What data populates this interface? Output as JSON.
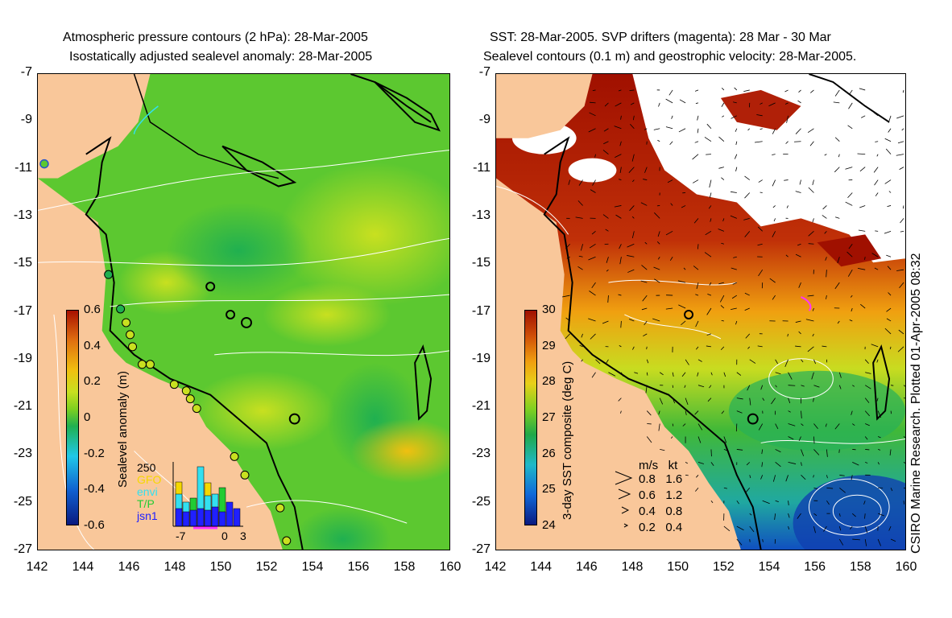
{
  "left_panel": {
    "title_line1": "Atmospheric pressure contours (2 hPa): 28-Mar-2005",
    "title_line2": "Isostatically adjusted sealevel anomaly: 28-Mar-2005",
    "colorbar": {
      "label": "Sealevel anomaly (m)",
      "ticks": [
        "0.6",
        "0.4",
        "0.2",
        "0",
        "-0.2",
        "-0.4",
        "-0.6"
      ],
      "range": [
        -0.6,
        0.6
      ]
    },
    "inset": {
      "ymax_label": "250",
      "legend": [
        {
          "name": "GFO",
          "color": "#f5d800"
        },
        {
          "name": "envi",
          "color": "#33e0f0"
        },
        {
          "name": "T/P",
          "color": "#22cc33"
        },
        {
          "name": "jsn1",
          "color": "#2020ff"
        }
      ],
      "x_ticks": [
        "-7",
        "0",
        "3"
      ]
    }
  },
  "right_panel": {
    "title_line1": "SST: 28-Mar-2005. SVP drifters (magenta): 28 Mar - 30 Mar",
    "title_line2": "Sealevel contours (0.1 m) and geostrophic velocity: 28-Mar-2005.",
    "colorbar": {
      "label": "3-day SST composite (deg C)",
      "ticks": [
        "30",
        "29",
        "28",
        "27",
        "26",
        "25",
        "24"
      ],
      "range": [
        24,
        30
      ]
    },
    "velocity_legend": {
      "header": "m/s   kt",
      "rows": [
        "0.8   1.6",
        "0.6   1.2",
        "0.4   0.8",
        "0.2   0.4"
      ]
    },
    "credit": "CSIRO Marine Research. Plotted 01-Apr-2005 08:32"
  },
  "axes": {
    "lat_ticks": [
      "-7",
      "-9",
      "-11",
      "-13",
      "-15",
      "-17",
      "-19",
      "-21",
      "-23",
      "-25",
      "-27"
    ],
    "lon_ticks": [
      "142",
      "144",
      "146",
      "148",
      "150",
      "152",
      "154",
      "156",
      "158",
      "160"
    ],
    "lat_range": [
      -27,
      -7
    ],
    "lon_range": [
      142,
      160
    ]
  },
  "colors": {
    "land": "#f9c79a",
    "ssl_scale": [
      "#0a1a80",
      "#1060d0",
      "#20c8e8",
      "#20b050",
      "#7ed020",
      "#c8e020",
      "#f0c010",
      "#e07010",
      "#a81000"
    ],
    "sst_scale": [
      "#0a1a80",
      "#1068d8",
      "#20b8c8",
      "#20a848",
      "#80d020",
      "#e8d018",
      "#f0a010",
      "#d05008",
      "#a01000"
    ]
  }
}
